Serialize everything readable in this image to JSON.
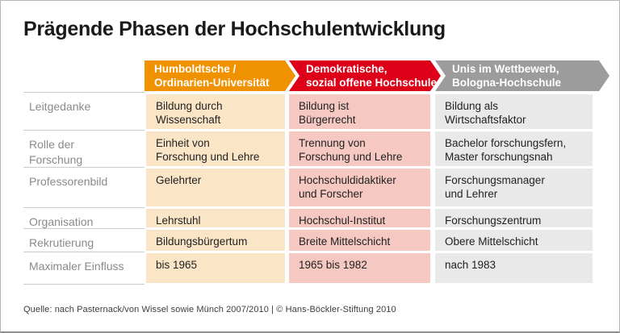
{
  "title": "Prägende Phasen der Hochschulentwicklung",
  "source_note": "Quelle: nach Pasternack/von Wissel sowie Münch 2007/2010 | © Hans-Böckler-Stiftung 2010",
  "colors": {
    "phase1_header": "#F09100",
    "phase2_header": "#DE0019",
    "phase3_header": "#9C9C9C",
    "phase1_cell_bg": "#FAE5C6",
    "phase2_cell_bg": "#F5C8C1",
    "phase3_cell_bg": "#E9E9E9",
    "row_label_text": "#8A8A8A",
    "cell_text": "#222222"
  },
  "table": {
    "row_labels": [
      "Leitgedanke",
      "Rolle der\nForschung",
      "Professorenbild",
      "Organisation",
      "Rekrutierung",
      "Maximaler Einfluss"
    ],
    "phases": [
      {
        "header": "Humboldtsche /\nOrdinarien-Universität",
        "cells": [
          "Bildung durch\nWissenschaft",
          "Einheit von\nForschung und Lehre",
          "Gelehrter",
          "Lehrstuhl",
          "Bildungsbürgertum",
          "bis 1965"
        ]
      },
      {
        "header": "Demokratische,\nsozial offene Hochschule",
        "cells": [
          "Bildung ist\nBürgerrecht",
          "Trennung von\nForschung und Lehre",
          "Hochschuldidaktiker\nund Forscher",
          "Hochschul-Institut",
          "Breite Mittelschicht",
          "1965 bis 1982"
        ]
      },
      {
        "header": "Unis im Wettbewerb,\nBologna-Hochschule",
        "cells": [
          "Bildung als\nWirtschaftsfaktor",
          "Bachelor forschungsfern,\nMaster forschungsnah",
          "Forschungsmanager\nund Lehrer",
          "Forschungszentrum",
          "Obere Mittelschicht",
          "nach 1983"
        ]
      }
    ]
  }
}
